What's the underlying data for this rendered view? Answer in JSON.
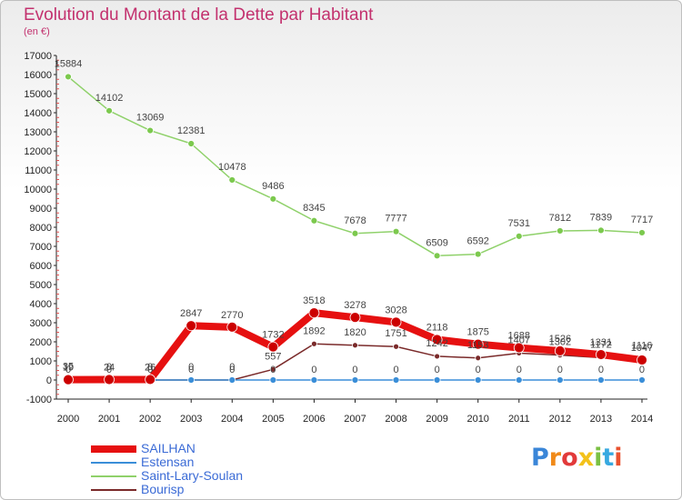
{
  "title": "Evolution du Montant de la Dette par Habitant",
  "subtitle": "(en €)",
  "logo": {
    "text": "Proxiti",
    "colors": [
      "#3a86d8",
      "#f08a1a",
      "#e23a3a",
      "#f3c21b",
      "#7bc043",
      "#37a9e0",
      "#e9522f"
    ]
  },
  "chart_data": {
    "type": "line",
    "x": [
      2000,
      2001,
      2002,
      2003,
      2004,
      2005,
      2006,
      2007,
      2008,
      2009,
      2010,
      2011,
      2012,
      2013,
      2014
    ],
    "ylim": [
      -1000,
      17000
    ],
    "yticks": [
      -1000,
      0,
      1000,
      2000,
      3000,
      4000,
      5000,
      6000,
      7000,
      8000,
      9000,
      10000,
      11000,
      12000,
      13000,
      14000,
      15000,
      16000,
      17000
    ],
    "grid": false,
    "legend_position": "bottom-left",
    "series": [
      {
        "name": "SAILHAN",
        "color": "#e61010",
        "values": [
          19,
          24,
          26,
          2847,
          2770,
          1732,
          3518,
          3278,
          3028,
          2118,
          1875,
          1688,
          1526,
          1331,
          1047
        ],
        "labels": [
          "19",
          "24",
          "26",
          "2847",
          "2770",
          "1732",
          "3518",
          "3278",
          "3028",
          "2118",
          "1875",
          "1688",
          "1526",
          "1331",
          "1047"
        ]
      },
      {
        "name": "Estensan",
        "color": "#3a8ed8",
        "values": [
          0,
          0,
          0,
          0,
          0,
          0,
          0,
          0,
          0,
          0,
          0,
          0,
          0,
          0,
          0
        ],
        "labels": [
          "0",
          "0",
          "0",
          "0",
          "0",
          "0",
          "0",
          "0",
          "0",
          "0",
          "0",
          "0",
          "0",
          "0",
          "0"
        ]
      },
      {
        "name": "Saint-Lary-Soulan",
        "color": "#8fd16a",
        "values": [
          15884,
          14102,
          13069,
          12381,
          10478,
          9486,
          8345,
          7678,
          7777,
          6509,
          6592,
          7531,
          7812,
          7839,
          7717
        ],
        "labels": [
          "15884",
          "14102",
          "13069",
          "12381",
          "10478",
          "9486",
          "8345",
          "7678",
          "7777",
          "6509",
          "6592",
          "7531",
          "7812",
          "7839",
          "7717"
        ]
      },
      {
        "name": "Bourisp",
        "color": "#7a2a2a",
        "values": [
          35,
          0,
          0,
          0,
          0,
          557,
          1892,
          1820,
          1751,
          1242,
          1153,
          1407,
          1302,
          1172,
          1116
        ],
        "labels": [
          "35",
          "0",
          "0",
          "0",
          "0",
          "557",
          "1892",
          "1820",
          "1751",
          "1242",
          "1153",
          "1407",
          "1302",
          "1172",
          "1116"
        ]
      }
    ]
  }
}
